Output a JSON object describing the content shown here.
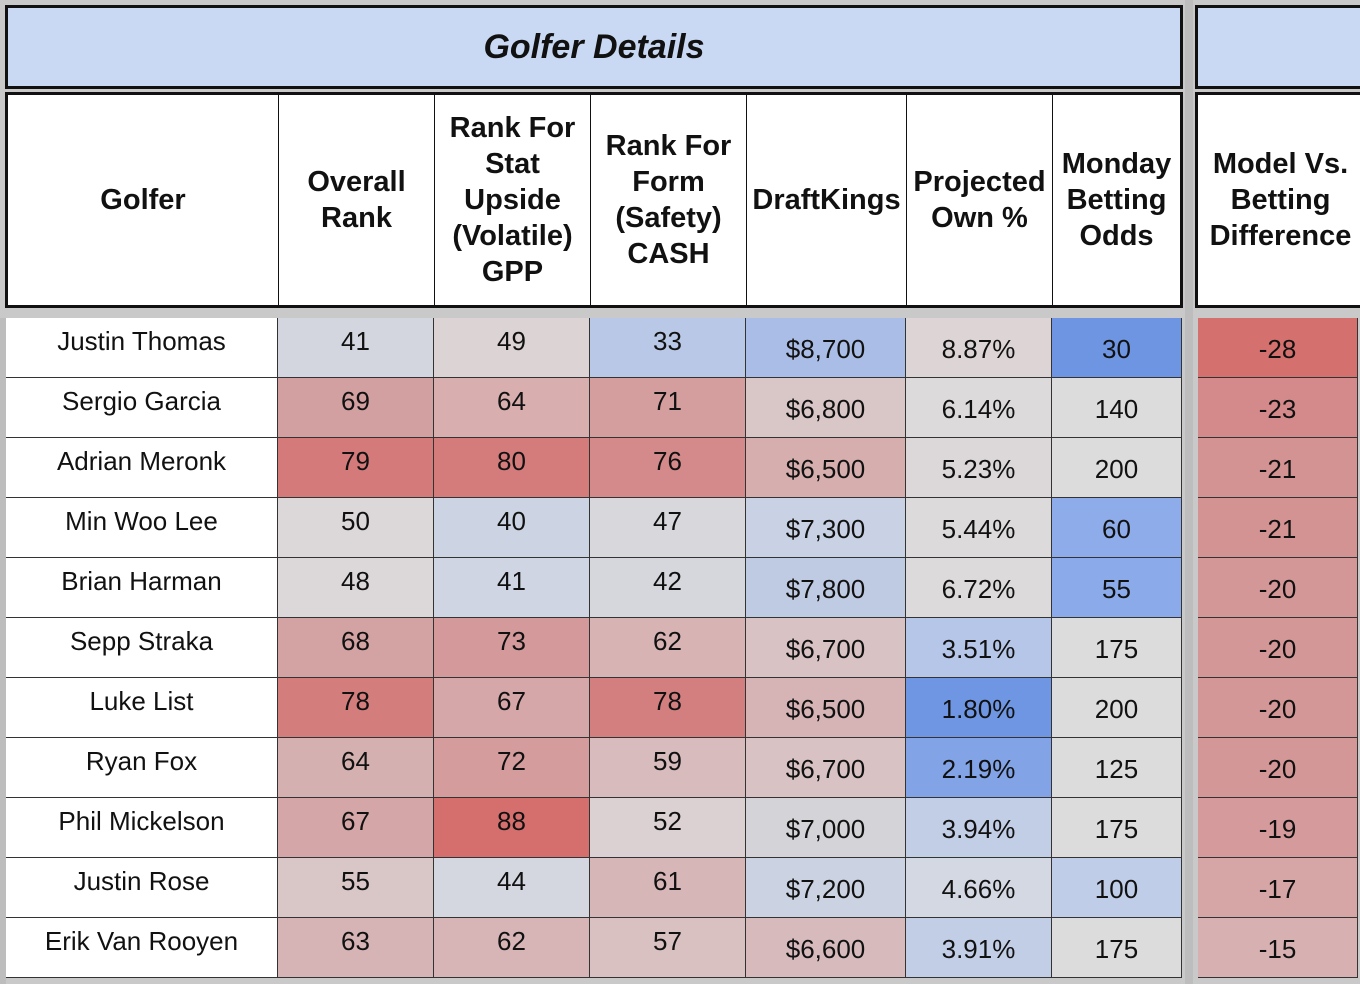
{
  "titles": {
    "main": "Golfer Details"
  },
  "headers": {
    "golfer": "Golfer",
    "overall_rank": "Overall Rank",
    "rank_stat": "Rank For Stat Upside (Volatile) GPP",
    "rank_form": "Rank For Form (Safety) CASH",
    "draftkings": "DraftKings",
    "projected_own": "Projected Own %",
    "monday_odds": "Monday Betting Odds",
    "model_vs": "Model Vs. Betting Difference"
  },
  "colors": {
    "title_band": "#c9d9f3",
    "red_strong": "#d4706e",
    "blue_strong": "#6f96e2",
    "neutral": "#dcdcdc"
  },
  "rows": [
    {
      "golfer": "Justin Thomas",
      "overall": "41",
      "stat": "49",
      "form": "33",
      "dk": "$8,700",
      "own": "8.87%",
      "odds": "30",
      "diff": "-28",
      "c_overall": "#d3d6de",
      "c_stat": "#dcd3d4",
      "c_form": "#b9c8e6",
      "c_dk": "#a9bde6",
      "c_own": "#dcd4d5",
      "c_odds": "#6e95e2",
      "c_diff": "#d4716f"
    },
    {
      "golfer": "Sergio Garcia",
      "overall": "69",
      "stat": "64",
      "form": "71",
      "dk": "$6,800",
      "own": "6.14%",
      "odds": "140",
      "diff": "-23",
      "c_overall": "#d3a0a1",
      "c_stat": "#d8aeae",
      "c_form": "#d49e9f",
      "c_dk": "#d9c6c7",
      "c_own": "#dcdadb",
      "c_odds": "#dcdcdc",
      "c_diff": "#d48a8a"
    },
    {
      "golfer": "Adrian Meronk",
      "overall": "79",
      "stat": "80",
      "form": "76",
      "dk": "$6,500",
      "own": "5.23%",
      "odds": "200",
      "diff": "-21",
      "c_overall": "#d47a7a",
      "c_stat": "#d47b7b",
      "c_form": "#d48a8a",
      "c_dk": "#d6aeae",
      "c_own": "#dcd8d9",
      "c_odds": "#dcdcdc",
      "c_diff": "#d49393"
    },
    {
      "golfer": "Min Woo Lee",
      "overall": "50",
      "stat": "40",
      "form": "47",
      "dk": "$7,300",
      "own": "5.44%",
      "odds": "60",
      "diff": "-21",
      "c_overall": "#dcd7d8",
      "c_stat": "#ccd4e3",
      "c_form": "#d8d7dc",
      "c_dk": "#c9d2e4",
      "c_own": "#dcdadb",
      "c_odds": "#8eacea",
      "c_diff": "#d49393"
    },
    {
      "golfer": "Brian Harman",
      "overall": "48",
      "stat": "41",
      "form": "42",
      "dk": "$7,800",
      "own": "6.72%",
      "odds": "55",
      "diff": "-20",
      "c_overall": "#dcd8d9",
      "c_stat": "#cfd5e2",
      "c_form": "#d6d7dd",
      "c_dk": "#bfcbe2",
      "c_own": "#dcdadb",
      "c_odds": "#8aaae9",
      "c_diff": "#d49797"
    },
    {
      "golfer": "Sepp Straka",
      "overall": "68",
      "stat": "73",
      "form": "62",
      "dk": "$6,700",
      "own": "3.51%",
      "odds": "175",
      "diff": "-20",
      "c_overall": "#d3a2a3",
      "c_stat": "#d49a9b",
      "c_form": "#d7b3b4",
      "c_dk": "#d8c2c3",
      "c_own": "#b6c6e8",
      "c_odds": "#dcdcdc",
      "c_diff": "#d49797"
    },
    {
      "golfer": "Luke List",
      "overall": "78",
      "stat": "67",
      "form": "78",
      "dk": "$6,500",
      "own": "1.80%",
      "odds": "200",
      "diff": "-20",
      "c_overall": "#d47d7d",
      "c_stat": "#d5a7a8",
      "c_form": "#d47f7f",
      "c_dk": "#d6b4b5",
      "c_own": "#6f96e3",
      "c_odds": "#dcdcdc",
      "c_diff": "#d49797"
    },
    {
      "golfer": "Ryan Fox",
      "overall": "64",
      "stat": "72",
      "form": "59",
      "dk": "$6,700",
      "own": "2.19%",
      "odds": "125",
      "diff": "-20",
      "c_overall": "#d5b0b1",
      "c_stat": "#d49c9d",
      "c_form": "#d8bbbc",
      "c_dk": "#d8c2c3",
      "c_own": "#82a3e6",
      "c_odds": "#dcdcdc",
      "c_diff": "#d49797"
    },
    {
      "golfer": "Phil Mickelson",
      "overall": "67",
      "stat": "88",
      "form": "52",
      "dk": "$7,000",
      "own": "3.94%",
      "odds": "175",
      "diff": "-19",
      "c_overall": "#d4a6a7",
      "c_stat": "#d46f6e",
      "c_form": "#dbd1d2",
      "c_dk": "#d3d3d8",
      "c_own": "#c2cde6",
      "c_odds": "#dcdcdc",
      "c_diff": "#d59b9c"
    },
    {
      "golfer": "Justin Rose",
      "overall": "55",
      "stat": "44",
      "form": "61",
      "dk": "$7,200",
      "own": "4.66%",
      "odds": "100",
      "diff": "-17",
      "c_overall": "#d9c6c7",
      "c_stat": "#d4d7df",
      "c_form": "#d7b6b7",
      "c_dk": "#cbd3e2",
      "c_own": "#d4d8e2",
      "c_odds": "#c0cde9",
      "c_diff": "#d6a5a6"
    },
    {
      "golfer": "Erik Van Rooyen",
      "overall": "63",
      "stat": "62",
      "form": "57",
      "dk": "$6,600",
      "own": "3.91%",
      "odds": "175",
      "diff": "-15",
      "c_overall": "#d6b3b4",
      "c_stat": "#d7b5b6",
      "c_form": "#d9c0c1",
      "c_dk": "#d7bbbc",
      "c_own": "#c2cde6",
      "c_odds": "#dcdcdc",
      "c_diff": "#d7b1b2"
    }
  ]
}
